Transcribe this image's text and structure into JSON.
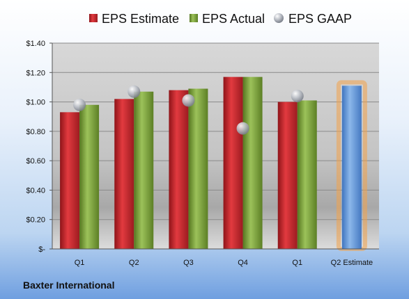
{
  "company": "Baxter International",
  "colors": {
    "estimate": "#c1272d",
    "actual": "#7aa23d",
    "gaap": "#b8bcc4",
    "future": "#6d9fd9",
    "highlight": "#f2a24a"
  },
  "chart_data": {
    "type": "bar",
    "categories": [
      "Q1",
      "Q2",
      "Q3",
      "Q4",
      "Q1",
      "Q2 Estimate"
    ],
    "series": [
      {
        "name": "EPS Estimate",
        "kind": "bar",
        "values": [
          0.93,
          1.02,
          1.08,
          1.17,
          1.0,
          null
        ]
      },
      {
        "name": "EPS Actual",
        "kind": "bar",
        "values": [
          0.98,
          1.07,
          1.09,
          1.17,
          1.01,
          null
        ]
      },
      {
        "name": "EPS GAAP",
        "kind": "scatter",
        "values": [
          0.98,
          1.07,
          1.01,
          0.82,
          1.04,
          null
        ]
      }
    ],
    "forecast": {
      "category_index": 5,
      "value": 1.11
    },
    "yticks": [
      "$-",
      "$0.20",
      "$0.40",
      "$0.60",
      "$0.80",
      "$1.00",
      "$1.20",
      "$1.40"
    ],
    "ylim": [
      0,
      1.4
    ],
    "grid": true,
    "legend": "top"
  }
}
